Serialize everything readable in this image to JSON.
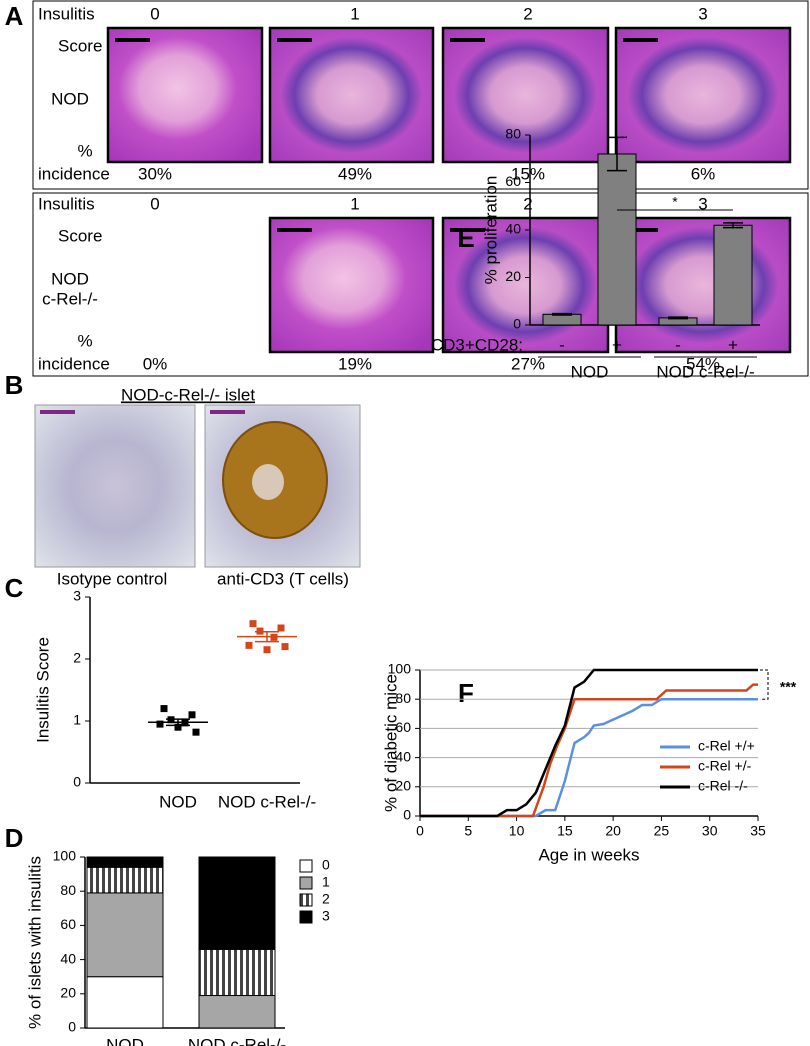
{
  "panel_a": {
    "letter": "A",
    "groups": [
      {
        "header": [
          "Insulitis",
          "Score"
        ],
        "strain": [
          "NOD"
        ],
        "incidence_label": [
          "%",
          "incidence"
        ],
        "scores": [
          "0",
          "1",
          "2",
          "3"
        ],
        "incidence": [
          "30%",
          "49%",
          "15%",
          "6%"
        ]
      },
      {
        "header": [
          "Insulitis",
          "Score"
        ],
        "strain": [
          "NOD",
          "c-Rel-/-"
        ],
        "incidence_label": [
          "%",
          "incidence"
        ],
        "scores": [
          "0",
          "1",
          "2",
          "3"
        ],
        "incidence": [
          "0%",
          "19%",
          "27%",
          "54%"
        ]
      }
    ]
  },
  "panel_b": {
    "letter": "B",
    "title": "NOD-c-Rel-/- islet",
    "captions": [
      "Isotype control",
      "anti-CD3 (T cells)"
    ]
  },
  "chart_data": [
    {
      "type": "dot",
      "letter": "C",
      "ylabel": "Insulitis Score",
      "categories": [
        "NOD",
        "NOD c-Rel-/-"
      ],
      "colors": [
        "#000000",
        "#d4461a"
      ],
      "points": [
        [
          1.2,
          1.1,
          1.02,
          0.97,
          0.95,
          0.9,
          0.82
        ],
        [
          2.57,
          2.5,
          2.45,
          2.35,
          2.22,
          2.15,
          2.2
        ]
      ],
      "means": [
        0.98,
        2.36
      ],
      "errors": [
        0.05,
        0.08
      ],
      "ylim": [
        0,
        3
      ],
      "yticks": [
        0,
        1,
        2,
        3
      ]
    },
    {
      "type": "stacked-bar",
      "letter": "D",
      "ylabel": "% of islets with insulitis",
      "categories": [
        "NOD",
        "NOD c-Rel-/-"
      ],
      "series": [
        {
          "name": "0",
          "color": "#ffffff",
          "values": [
            30,
            0
          ]
        },
        {
          "name": "1",
          "color": "#a6a6a6",
          "values": [
            49,
            19
          ]
        },
        {
          "name": "2",
          "color": "#ffffff",
          "pattern": "vertical-stripes",
          "values": [
            15,
            27
          ]
        },
        {
          "name": "3",
          "color": "#000000",
          "values": [
            6,
            54
          ]
        }
      ],
      "ylim": [
        0,
        100
      ],
      "yticks": [
        0,
        20,
        40,
        60,
        80,
        100
      ],
      "legend": "right"
    },
    {
      "type": "bar",
      "letter": "E",
      "ylabel": "% proliferation",
      "row_label": "CD3+CD28:",
      "categories": [
        "-",
        "+",
        "-",
        "+"
      ],
      "groups": [
        "NOD",
        "NOD c-Rel-/-"
      ],
      "values": [
        4.5,
        72,
        3,
        42
      ],
      "errors": [
        0.3,
        7,
        0.3,
        1
      ],
      "color": "#808080",
      "annotation": "*",
      "ylim": [
        0,
        80
      ],
      "yticks": [
        0,
        20,
        40,
        60,
        80
      ]
    },
    {
      "type": "line",
      "letter": "F",
      "xlabel": "Age in weeks",
      "ylabel": "% of diabetic mice",
      "series": [
        {
          "name": "c-Rel +/+",
          "color": "#5b8fe0",
          "x": [
            0,
            12,
            13,
            14,
            15,
            16,
            16.5,
            17,
            17.5,
            18,
            19,
            20,
            22,
            23,
            24,
            25,
            26,
            35
          ],
          "values": [
            0,
            0,
            4,
            4,
            24,
            50,
            52,
            54,
            57,
            62,
            63,
            66,
            72,
            76,
            76,
            80,
            80,
            80
          ]
        },
        {
          "name": "c-Rel +/-",
          "color": "#d4461a",
          "x": [
            0,
            11.7,
            12.8,
            13.5,
            14.2,
            15,
            15.8,
            16,
            24.5,
            25.5,
            33.8,
            34.5,
            35
          ],
          "values": [
            0,
            0,
            20,
            36,
            48,
            60,
            76,
            80,
            80,
            86,
            86,
            90,
            90
          ]
        },
        {
          "name": "c-Rel -/-",
          "color": "#000000",
          "x": [
            0,
            8,
            9,
            10,
            11,
            12,
            13,
            14,
            15,
            16,
            17,
            18,
            35
          ],
          "values": [
            0,
            0,
            4,
            4,
            8,
            16,
            32,
            48,
            62,
            88,
            92,
            100,
            100
          ]
        }
      ],
      "annotation": "***",
      "xlim": [
        0,
        35
      ],
      "xticks": [
        0,
        5,
        10,
        15,
        20,
        25,
        30,
        35
      ],
      "ylim": [
        0,
        100
      ],
      "yticks": [
        0,
        20,
        40,
        60,
        80,
        100
      ],
      "grid": true,
      "legend": "lower right"
    }
  ]
}
